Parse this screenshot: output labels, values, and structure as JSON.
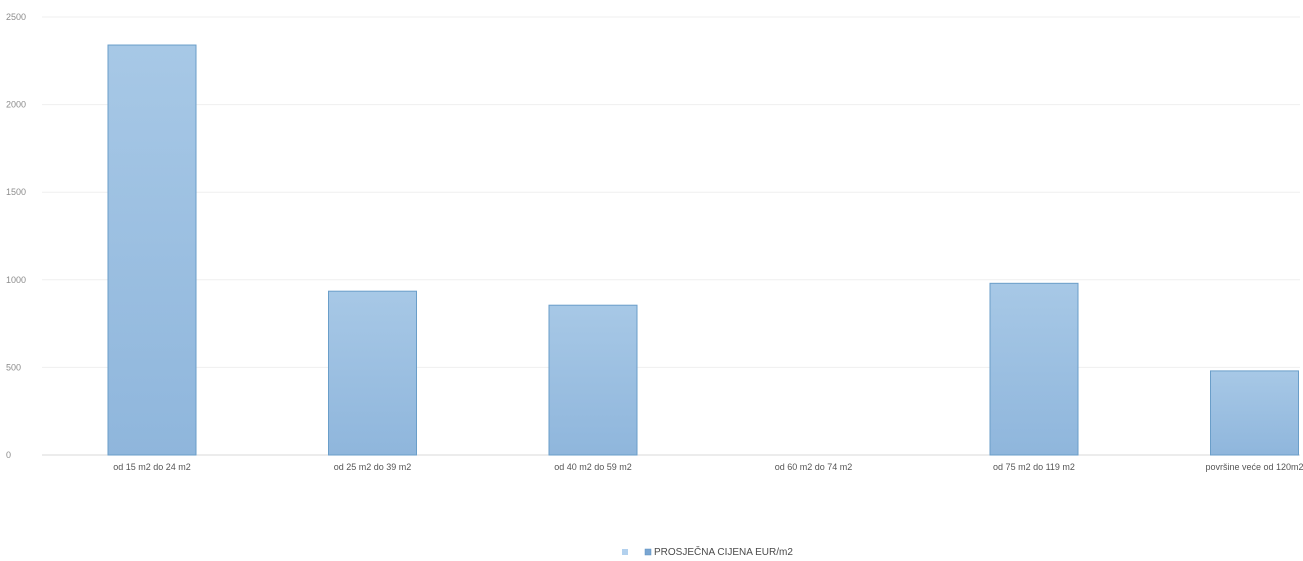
{
  "chart_data": {
    "type": "bar",
    "title": "",
    "xlabel": "",
    "ylabel": "",
    "ylim": [
      0,
      2500
    ],
    "y_ticks": [
      0,
      500,
      1000,
      1500,
      2000,
      2500
    ],
    "y_tick_labels": [
      "0",
      "500",
      "1000",
      "1500",
      "2000",
      "2500"
    ],
    "grid": true,
    "legend_position": "bottom-center",
    "categories": [
      "od 15 m2 do 24 m2",
      "od 25 m2 do 39 m2",
      "od 40 m2 do 59 m2",
      "od 60 m2 do 74 m2",
      "od 75 m2 do 119 m2",
      "površine veće od 120m2"
    ],
    "series": [
      {
        "name": "PROSJEČNA CIJENA EUR/m2",
        "values": [
          2340,
          935,
          855,
          null,
          980,
          480
        ],
        "color": "#a7c8e6"
      }
    ],
    "legend_entries": [
      "",
      "PROSJEČNA CIJENA EUR/m2"
    ],
    "colors": {
      "bar_fill_top": "#a7c8e6",
      "bar_fill_bottom": "#8fb6dc",
      "bar_stroke": "#6a9ec9",
      "legend_marker_light": "#b3d1ee",
      "legend_marker_dark": "#7aa6d2"
    }
  }
}
